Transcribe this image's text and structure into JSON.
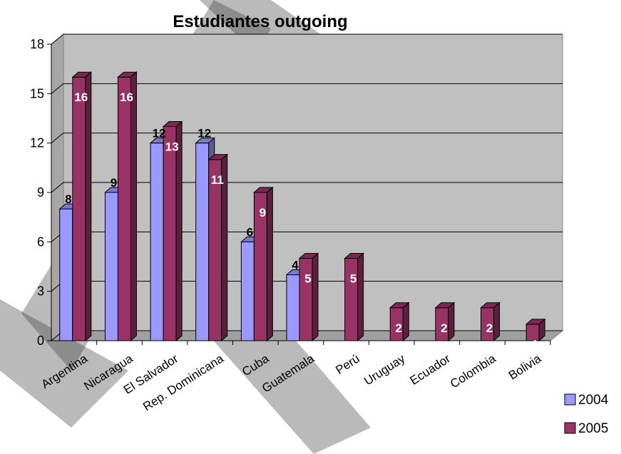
{
  "chart_data": {
    "type": "bar",
    "title": "Estudiantes outgoing",
    "xlabel": "",
    "ylabel": "",
    "categories": [
      "Argentina",
      "Nicaragua",
      "El Salvador",
      "Rep. Dominicana",
      "Cuba",
      "Guatemala",
      "Perú",
      "Uruguay",
      "Ecuador",
      "Colombia",
      "Bolivia"
    ],
    "series": [
      {
        "name": "2004",
        "values": [
          8,
          9,
          12,
          12,
          6,
          4,
          null,
          null,
          null,
          null,
          null
        ],
        "color": "#9999ff"
      },
      {
        "name": "2005",
        "values": [
          16,
          16,
          13,
          11,
          9,
          5,
          5,
          2,
          2,
          2,
          1
        ],
        "color": "#993366"
      }
    ],
    "ylim": [
      0,
      18
    ],
    "yticks": [
      "0",
      "3",
      "6",
      "9",
      "12",
      "15",
      "18"
    ],
    "grid": true,
    "legend_position": "bottom-right",
    "plot_background": "#c0c0c0",
    "style": "3d-clustered-column"
  }
}
